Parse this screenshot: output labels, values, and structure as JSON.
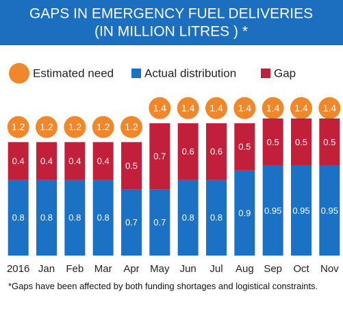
{
  "chart_data": {
    "type": "bar",
    "stacked": true,
    "title": "GAPS IN EMERGENCY FUEL DELIVERIES",
    "subtitle": "(IN MILLION LITRES ) *",
    "categories": [
      "2016",
      "Jan",
      "Feb",
      "Mar",
      "Apr",
      "May",
      "Jun",
      "Jul",
      "Aug",
      "Sep",
      "Oct",
      "Nov"
    ],
    "series": [
      {
        "name": "Estimated need",
        "color": "#f0872a",
        "marker": "circle",
        "values": [
          1.2,
          1.2,
          1.2,
          1.2,
          1.2,
          1.4,
          1.4,
          1.4,
          1.4,
          1.4,
          1.4,
          1.4
        ]
      },
      {
        "name": "Actual distribution",
        "color": "#1b72c4",
        "values": [
          0.8,
          0.8,
          0.8,
          0.8,
          0.7,
          0.7,
          0.8,
          0.8,
          0.9,
          0.95,
          0.95,
          0.95
        ]
      },
      {
        "name": "Gap",
        "color": "#c21f3a",
        "values": [
          0.4,
          0.4,
          0.4,
          0.4,
          0.5,
          0.7,
          0.6,
          0.6,
          0.5,
          0.5,
          0.5,
          0.5
        ]
      }
    ],
    "footnote": "*Gaps have been affected by both funding shortages and logistical constraints."
  }
}
